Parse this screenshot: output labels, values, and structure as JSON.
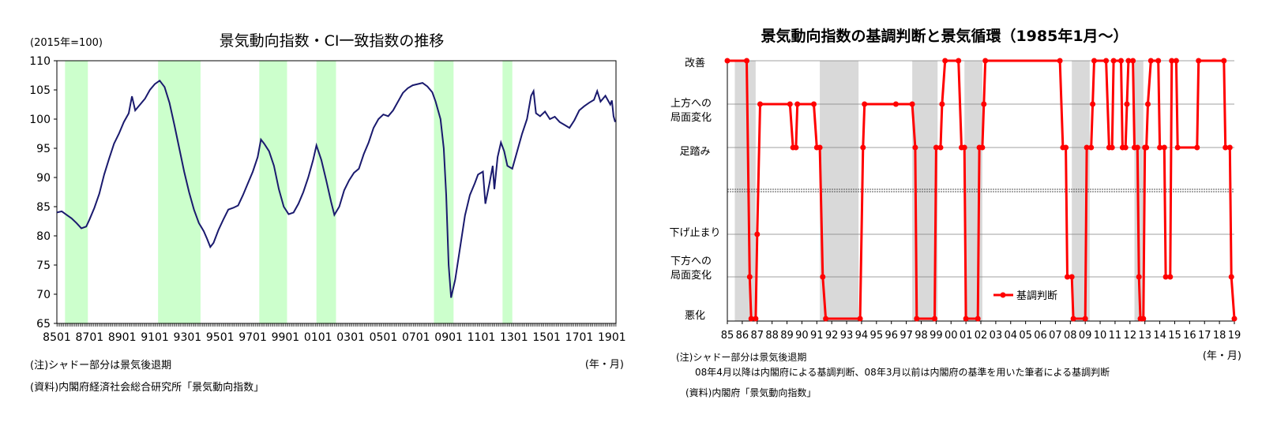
{
  "chart_data": [
    {
      "type": "line",
      "title": "景気動向指数・CI一致指数の推移",
      "unit_label": "(2015年=100)",
      "x_unit": "(年・月)",
      "x_ticks": [
        "8501",
        "8701",
        "8901",
        "9101",
        "9301",
        "9501",
        "9701",
        "9901",
        "0101",
        "0301",
        "0501",
        "0701",
        "0901",
        "1101",
        "1301",
        "1501",
        "1701",
        "1901"
      ],
      "ylim": [
        65,
        110
      ],
      "y_ticks": [
        65,
        70,
        75,
        80,
        85,
        90,
        95,
        100,
        105,
        110
      ],
      "recessions": [
        [
          1985.5,
          1986.9
        ],
        [
          1991.2,
          1993.8
        ],
        [
          1997.4,
          1999.1
        ],
        [
          2000.9,
          2002.1
        ],
        [
          2008.1,
          2009.3
        ],
        [
          2012.3,
          2012.9
        ]
      ],
      "series": [
        {
          "values": [
            [
              1985.0,
              84.0
            ],
            [
              1985.3,
              84.2
            ],
            [
              1985.6,
              83.6
            ],
            [
              1985.9,
              83.0
            ],
            [
              1986.2,
              82.2
            ],
            [
              1986.5,
              81.3
            ],
            [
              1986.8,
              81.6
            ],
            [
              1987.0,
              82.8
            ],
            [
              1987.3,
              84.8
            ],
            [
              1987.6,
              87.2
            ],
            [
              1987.9,
              90.5
            ],
            [
              1988.2,
              93.2
            ],
            [
              1988.5,
              95.8
            ],
            [
              1988.8,
              97.5
            ],
            [
              1989.1,
              99.5
            ],
            [
              1989.4,
              101.0
            ],
            [
              1989.6,
              103.9
            ],
            [
              1989.8,
              101.5
            ],
            [
              1990.1,
              102.5
            ],
            [
              1990.4,
              103.5
            ],
            [
              1990.7,
              105.0
            ],
            [
              1991.0,
              106.0
            ],
            [
              1991.3,
              106.6
            ],
            [
              1991.6,
              105.5
            ],
            [
              1991.9,
              102.8
            ],
            [
              1992.2,
              99.0
            ],
            [
              1992.5,
              95.0
            ],
            [
              1992.8,
              91.0
            ],
            [
              1993.1,
              87.5
            ],
            [
              1993.4,
              84.5
            ],
            [
              1993.7,
              82.2
            ],
            [
              1994.0,
              80.8
            ],
            [
              1994.2,
              79.5
            ],
            [
              1994.4,
              78.1
            ],
            [
              1994.6,
              78.8
            ],
            [
              1994.9,
              81.0
            ],
            [
              1995.2,
              82.8
            ],
            [
              1995.5,
              84.5
            ],
            [
              1995.8,
              84.8
            ],
            [
              1996.1,
              85.2
            ],
            [
              1996.4,
              87.0
            ],
            [
              1996.7,
              89.0
            ],
            [
              1997.0,
              91.0
            ],
            [
              1997.3,
              93.5
            ],
            [
              1997.5,
              96.5
            ],
            [
              1997.7,
              95.8
            ],
            [
              1998.0,
              94.5
            ],
            [
              1998.3,
              92.0
            ],
            [
              1998.6,
              88.0
            ],
            [
              1998.9,
              85.0
            ],
            [
              1999.2,
              83.7
            ],
            [
              1999.5,
              84.0
            ],
            [
              1999.8,
              85.5
            ],
            [
              2000.1,
              87.5
            ],
            [
              2000.4,
              90.0
            ],
            [
              2000.7,
              93.0
            ],
            [
              2000.9,
              95.5
            ],
            [
              2001.2,
              93.0
            ],
            [
              2001.5,
              89.5
            ],
            [
              2001.8,
              85.8
            ],
            [
              2002.0,
              83.6
            ],
            [
              2002.3,
              85.0
            ],
            [
              2002.6,
              87.8
            ],
            [
              2002.9,
              89.5
            ],
            [
              2003.2,
              90.8
            ],
            [
              2003.5,
              91.5
            ],
            [
              2003.8,
              94.0
            ],
            [
              2004.1,
              96.0
            ],
            [
              2004.4,
              98.5
            ],
            [
              2004.7,
              100.0
            ],
            [
              2005.0,
              100.8
            ],
            [
              2005.3,
              100.5
            ],
            [
              2005.6,
              101.5
            ],
            [
              2005.9,
              103.0
            ],
            [
              2006.2,
              104.5
            ],
            [
              2006.5,
              105.3
            ],
            [
              2006.8,
              105.8
            ],
            [
              2007.1,
              106.0
            ],
            [
              2007.4,
              106.2
            ],
            [
              2007.7,
              105.6
            ],
            [
              2008.0,
              104.6
            ],
            [
              2008.2,
              103.0
            ],
            [
              2008.5,
              100.0
            ],
            [
              2008.7,
              95.0
            ],
            [
              2008.85,
              87.0
            ],
            [
              2009.0,
              75.0
            ],
            [
              2009.15,
              69.4
            ],
            [
              2009.4,
              72.5
            ],
            [
              2009.7,
              78.0
            ],
            [
              2010.0,
              83.5
            ],
            [
              2010.3,
              87.0
            ],
            [
              2010.6,
              89.0
            ],
            [
              2010.8,
              90.5
            ],
            [
              2011.1,
              91.0
            ],
            [
              2011.25,
              85.5
            ],
            [
              2011.5,
              89.0
            ],
            [
              2011.7,
              92.0
            ],
            [
              2011.8,
              88.0
            ],
            [
              2012.0,
              93.5
            ],
            [
              2012.2,
              96.0
            ],
            [
              2012.4,
              94.5
            ],
            [
              2012.6,
              92.0
            ],
            [
              2012.9,
              91.5
            ],
            [
              2013.2,
              94.5
            ],
            [
              2013.5,
              97.5
            ],
            [
              2013.8,
              100.0
            ],
            [
              2014.05,
              104.0
            ],
            [
              2014.2,
              104.8
            ],
            [
              2014.35,
              101.0
            ],
            [
              2014.6,
              100.5
            ],
            [
              2014.9,
              101.3
            ],
            [
              2015.2,
              100.0
            ],
            [
              2015.5,
              100.4
            ],
            [
              2015.8,
              99.5
            ],
            [
              2016.1,
              99.0
            ],
            [
              2016.4,
              98.5
            ],
            [
              2016.7,
              99.8
            ],
            [
              2017.0,
              101.5
            ],
            [
              2017.3,
              102.2
            ],
            [
              2017.6,
              102.8
            ],
            [
              2017.9,
              103.3
            ],
            [
              2018.1,
              104.8
            ],
            [
              2018.3,
              103.0
            ],
            [
              2018.6,
              104.0
            ],
            [
              2018.9,
              102.5
            ],
            [
              2019.0,
              103.2
            ],
            [
              2019.1,
              100.5
            ],
            [
              2019.2,
              99.5
            ]
          ]
        }
      ]
    },
    {
      "type": "line",
      "title": "景気動向指数の基調判断と景気循環（1985年1月～）",
      "x_unit": "(年・月)",
      "x_ticks": [
        "85",
        "86",
        "87",
        "88",
        "89",
        "90",
        "91",
        "92",
        "93",
        "94",
        "95",
        "96",
        "97",
        "98",
        "99",
        "00",
        "01",
        "02",
        "03",
        "04",
        "05",
        "06",
        "07",
        "08",
        "09",
        "10",
        "11",
        "12",
        "13",
        "14",
        "15",
        "16",
        "17",
        "18",
        "19"
      ],
      "y_categories": [
        "悪化",
        "下方への局面変化",
        "下げ止まり",
        "足踏み",
        "上方への局面変化",
        "改善"
      ],
      "y_labels": {
        "up": "改善",
        "up_change": [
          "上方への",
          "局面変化"
        ],
        "pause": "足踏み",
        "bottom": "下げ止まり",
        "down_change": [
          "下方への",
          "局面変化"
        ],
        "down": "悪化"
      },
      "legend": "基調判断",
      "legend_position": "lower-center",
      "recessions": [
        [
          1985.5,
          1986.9
        ],
        [
          1991.2,
          1993.8
        ],
        [
          1997.4,
          1999.1
        ],
        [
          2000.9,
          2002.1
        ],
        [
          2008.1,
          2009.3
        ],
        [
          2012.3,
          2012.9
        ]
      ],
      "series": [
        {
          "name": "基調判断",
          "values": [
            [
              1985.0,
              6
            ],
            [
              1986.3,
              6
            ],
            [
              1986.5,
              2
            ],
            [
              1986.6,
              1
            ],
            [
              1986.9,
              1
            ],
            [
              1987.0,
              4
            ],
            [
              1987.2,
              5
            ],
            [
              1989.2,
              5
            ],
            [
              1989.4,
              3
            ],
            [
              1989.6,
              3
            ],
            [
              1989.7,
              5
            ],
            [
              1990.8,
              5
            ],
            [
              1991.0,
              3
            ],
            [
              1991.2,
              3
            ],
            [
              1991.4,
              2
            ],
            [
              1991.6,
              1
            ],
            [
              1993.9,
              1
            ],
            [
              1994.1,
              3
            ],
            [
              1994.2,
              5
            ],
            [
              1996.3,
              5
            ],
            [
              1997.4,
              5
            ],
            [
              1997.6,
              3
            ],
            [
              1997.7,
              1
            ],
            [
              1998.9,
              1
            ],
            [
              1999.0,
              3
            ],
            [
              1999.3,
              3
            ],
            [
              1999.4,
              5
            ],
            [
              1999.6,
              6
            ],
            [
              2000.5,
              6
            ],
            [
              2000.7,
              3
            ],
            [
              2000.9,
              3
            ],
            [
              2001.0,
              1
            ],
            [
              2001.8,
              1
            ],
            [
              2001.9,
              3
            ],
            [
              2002.1,
              3
            ],
            [
              2002.2,
              5
            ],
            [
              2002.3,
              6
            ],
            [
              2007.3,
              6
            ],
            [
              2007.5,
              3
            ],
            [
              2007.7,
              3
            ],
            [
              2007.8,
              2
            ],
            [
              2008.1,
              2
            ],
            [
              2008.2,
              1
            ],
            [
              2009.0,
              1
            ],
            [
              2009.1,
              3
            ],
            [
              2009.4,
              3
            ],
            [
              2009.5,
              5
            ],
            [
              2009.6,
              6
            ],
            [
              2010.4,
              6
            ],
            [
              2010.6,
              3
            ],
            [
              2010.8,
              3
            ],
            [
              2010.9,
              6
            ],
            [
              2011.4,
              6
            ],
            [
              2011.5,
              3
            ],
            [
              2011.7,
              3
            ],
            [
              2011.8,
              5
            ],
            [
              2011.9,
              6
            ],
            [
              2012.2,
              6
            ],
            [
              2012.3,
              3
            ],
            [
              2012.5,
              3
            ],
            [
              2012.6,
              2
            ],
            [
              2012.7,
              1
            ],
            [
              2012.9,
              1
            ],
            [
              2013.0,
              3
            ],
            [
              2013.1,
              3
            ],
            [
              2013.2,
              5
            ],
            [
              2013.4,
              6
            ],
            [
              2013.9,
              6
            ],
            [
              2014.0,
              3
            ],
            [
              2014.3,
              3
            ],
            [
              2014.4,
              2
            ],
            [
              2014.7,
              2
            ],
            [
              2014.8,
              6
            ],
            [
              2015.1,
              6
            ],
            [
              2015.2,
              3
            ],
            [
              2016.5,
              3
            ],
            [
              2016.6,
              6
            ],
            [
              2018.3,
              6
            ],
            [
              2018.4,
              3
            ],
            [
              2018.7,
              3
            ],
            [
              2018.8,
              2
            ],
            [
              2019.0,
              1
            ]
          ]
        }
      ]
    }
  ],
  "notes": {
    "left_note": "(注)シャドー部分は景気後退期",
    "left_source": "(資料)内閣府経済社会総合研究所「景気動向指数」",
    "right_note": "(注)シャドー部分は景気後退期",
    "right_note2": "08年4月以降は内閣府による基調判断、08年3月以前は内閣府の基準を用いた筆者による基調判断",
    "right_source": "(資料)内閣府「景気動向指数」"
  },
  "colors": {
    "left_line": "#1a1a6e",
    "left_shade": "#ccffcc",
    "right_line": "#ff0000",
    "right_shade": "#d9d9d9"
  }
}
